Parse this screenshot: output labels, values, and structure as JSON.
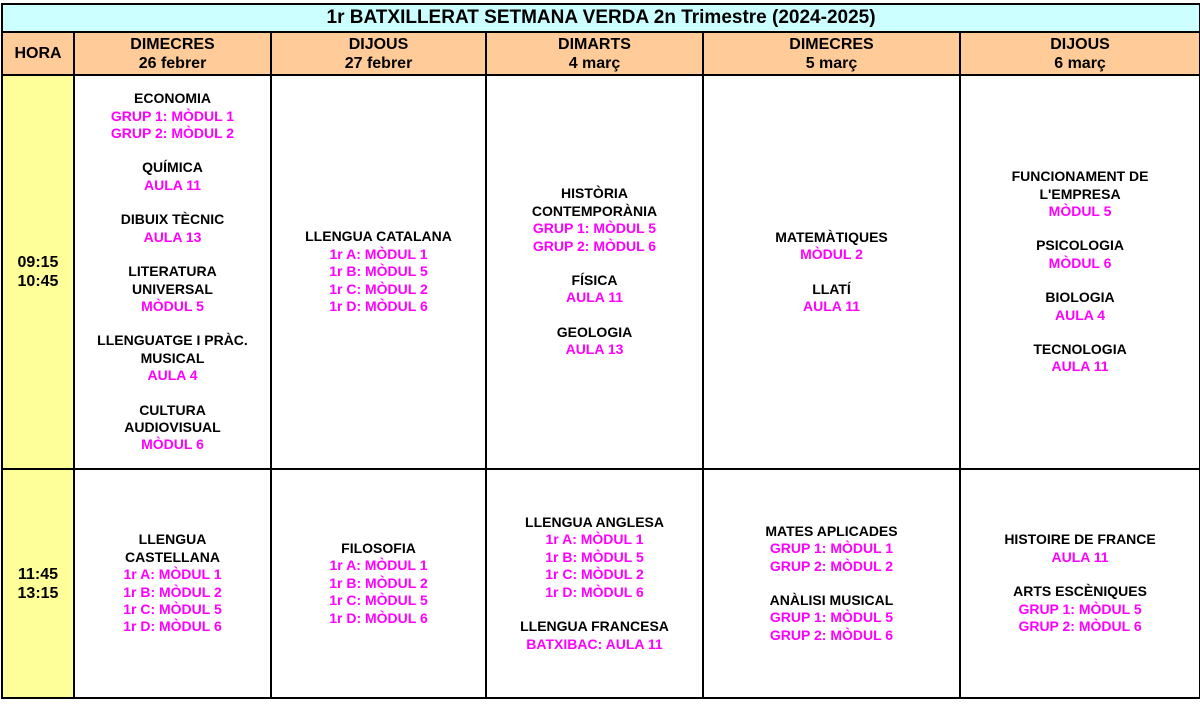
{
  "title": "1r BATXILLERAT SETMANA VERDA 2n Trimestre (2024-2025)",
  "hora_label": "HORA",
  "colors": {
    "title_bg": "#ccffff",
    "header_bg": "#ffcc99",
    "hora_bg": "#ffff99",
    "room_text": "#ff00ff"
  },
  "days": [
    {
      "day": "DIMECRES",
      "date": "26 febrer"
    },
    {
      "day": "DIJOUS",
      "date": "27 febrer"
    },
    {
      "day": "DIMARTS",
      "date": "4 març"
    },
    {
      "day": "DIMECRES",
      "date": "5 març"
    },
    {
      "day": "DIJOUS",
      "date": "6 març"
    }
  ],
  "rows": [
    {
      "start": "09:15",
      "end": "10:45",
      "cells": [
        [
          {
            "t": [
              "ECONOMIA"
            ],
            "m": [
              "GRUP 1: MÒDUL 1",
              "GRUP 2: MÒDUL 2"
            ]
          },
          {
            "t": [
              "QUÍMICA"
            ],
            "m": [
              "AULA 11"
            ]
          },
          {
            "t": [
              "DIBUIX TÈCNIC"
            ],
            "m": [
              "AULA 13"
            ]
          },
          {
            "t": [
              "LITERATURA",
              "UNIVERSAL"
            ],
            "m": [
              "MÒDUL 5"
            ]
          },
          {
            "t": [
              "LLENGUATGE I PRÀC.",
              "MUSICAL"
            ],
            "m": [
              "AULA 4"
            ]
          },
          {
            "t": [
              "CULTURA",
              "AUDIOVISUAL"
            ],
            "m": [
              "MÒDUL 6"
            ]
          }
        ],
        [
          {
            "t": [
              "LLENGUA CATALANA"
            ],
            "m": [
              "1r A: MÒDUL 1",
              "1r B: MÒDUL 5",
              "1r C: MÒDUL 2",
              "1r D: MÒDUL 6"
            ]
          }
        ],
        [
          {
            "t": [
              "HISTÒRIA",
              "CONTEMPORÀNIA"
            ],
            "m": [
              "GRUP 1: MÒDUL 5",
              "GRUP 2: MÒDUL 6"
            ]
          },
          {
            "t": [
              "FÍSICA"
            ],
            "m": [
              "AULA 11"
            ]
          },
          {
            "t": [
              "GEOLOGIA"
            ],
            "m": [
              "AULA 13"
            ]
          }
        ],
        [
          {
            "t": [
              "MATEMÀTIQUES"
            ],
            "m": [
              "MÒDUL 2"
            ]
          },
          {
            "t": [
              "LLATÍ"
            ],
            "m": [
              "AULA 11"
            ]
          }
        ],
        [
          {
            "t": [
              "FUNCIONAMENT DE",
              "L'EMPRESA"
            ],
            "m": [
              "MÒDUL 5"
            ]
          },
          {
            "t": [
              "PSICOLOGIA"
            ],
            "m": [
              "MÒDUL 6"
            ]
          },
          {
            "t": [
              "BIOLOGIA"
            ],
            "m": [
              "AULA 4"
            ]
          },
          {
            "t": [
              "TECNOLOGIA"
            ],
            "m": [
              "AULA 11"
            ]
          }
        ]
      ]
    },
    {
      "start": "11:45",
      "end": "13:15",
      "cells": [
        [
          {
            "t": [
              "LLENGUA",
              "CASTELLANA"
            ],
            "m": [
              "1r A: MÒDUL 1",
              "1r B: MÒDUL 2",
              "1r C: MÒDUL 5",
              "1r D: MÒDUL 6"
            ]
          }
        ],
        [
          {
            "t": [
              "FILOSOFIA"
            ],
            "m": [
              "1r A: MÒDUL 1",
              "1r B: MÒDUL 2",
              "1r C: MÒDUL 5",
              "1r D: MÒDUL 6"
            ]
          }
        ],
        [
          {
            "t": [
              "LLENGUA ANGLESA"
            ],
            "m": [
              "1r A: MÒDUL 1",
              "1r B: MÒDUL 5",
              "1r C: MÒDUL 2",
              "1r D: MÒDUL 6"
            ]
          },
          {
            "t": [
              "LLENGUA FRANCESA"
            ],
            "m": [
              "BATXIBAC: AULA 11"
            ]
          }
        ],
        [
          {
            "t": [
              "MATES APLICADES"
            ],
            "m": [
              "GRUP 1: MÒDUL 1",
              "GRUP 2: MÒDUL 2"
            ]
          },
          {
            "t": [
              "ANÀLISI MUSICAL"
            ],
            "m": [
              "GRUP 1: MÒDUL 5",
              "GRUP 2: MÒDUL 6"
            ]
          }
        ],
        [
          {
            "t": [
              "HISTOIRE DE FRANCE"
            ],
            "m": [
              "AULA 11"
            ]
          },
          {
            "t": [
              "ARTS ESCÈNIQUES"
            ],
            "m": [
              "GRUP 1: MÒDUL 5",
              "GRUP 2: MÒDUL 6"
            ]
          }
        ]
      ]
    }
  ]
}
